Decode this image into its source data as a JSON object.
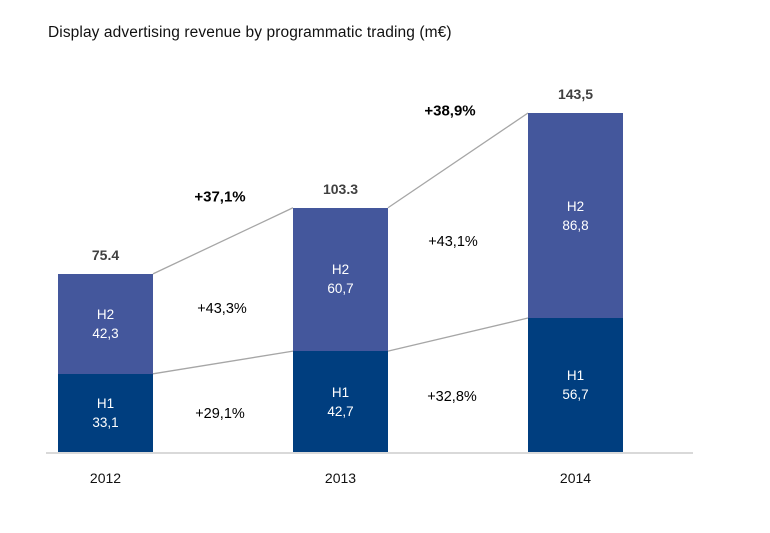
{
  "title": "Display advertising revenue by programmatic trading (m€)",
  "chart_data": {
    "type": "bar",
    "stacked": true,
    "unit": "m€",
    "title": "Display advertising revenue by programmatic trading (m€)",
    "categories": [
      "2012",
      "2013",
      "2014"
    ],
    "series": [
      {
        "name": "H1",
        "values": [
          33.1,
          42.7,
          56.7
        ],
        "labels": [
          "33,1",
          "42,7",
          "56,7"
        ],
        "color": "#003e7f"
      },
      {
        "name": "H2",
        "values": [
          42.3,
          60.7,
          86.8
        ],
        "labels": [
          "42,3",
          "60,7",
          "86,8"
        ],
        "color": "#44579c"
      }
    ],
    "totals": {
      "values": [
        75.4,
        103.3,
        143.5
      ],
      "labels": [
        "75.4",
        "103.3",
        "143,5"
      ]
    },
    "growth_labels": {
      "total": [
        "+37,1%",
        "+38,9%"
      ],
      "h2": [
        "+43,3%",
        "+43,1%"
      ],
      "h1": [
        "+29,1%",
        "+32,8%"
      ]
    },
    "ylim": [
      0,
      150
    ],
    "grid": false,
    "legend_position": "none",
    "colors": {
      "connector": "#a6a6a6",
      "axis_line": "#d9d9d9",
      "total_label": "#404040"
    }
  }
}
